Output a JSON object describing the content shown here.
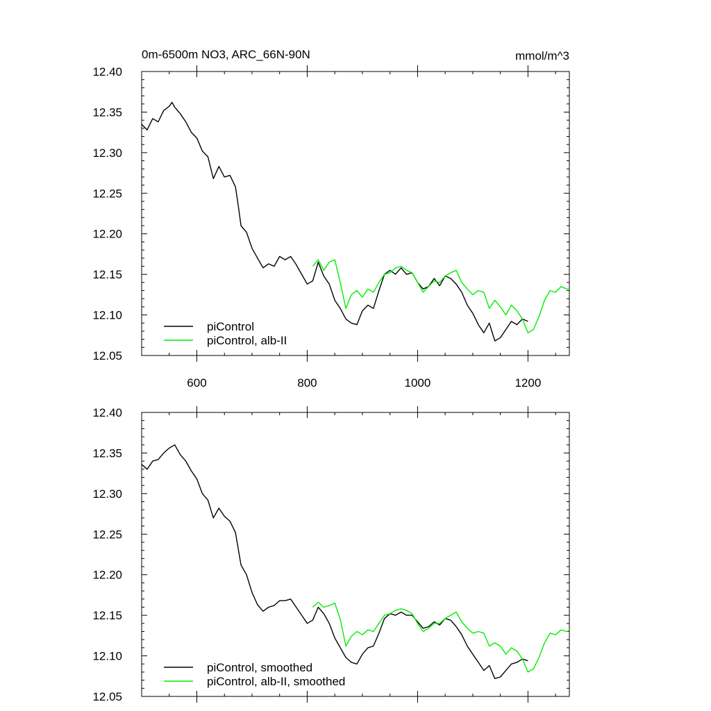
{
  "chart_data": [
    {
      "type": "line",
      "title": "0m-6500m NO3, ARC_66N-90N",
      "units": "mmol/m^3",
      "xlim": [
        500,
        1275
      ],
      "ylim": [
        12.05,
        12.4
      ],
      "xticks": [
        600,
        800,
        1000,
        1200
      ],
      "xtick_labels": [
        "600",
        "800",
        "1000",
        "1200"
      ],
      "yticks": [
        12.05,
        12.1,
        12.15,
        12.2,
        12.25,
        12.3,
        12.35,
        12.4
      ],
      "ytick_labels": [
        "12.05",
        "12.10",
        "12.15",
        "12.20",
        "12.25",
        "12.30",
        "12.35",
        "12.40"
      ],
      "legend_position": "bottom-left",
      "series": [
        {
          "name": "piControl",
          "color": "#000000",
          "x": [
            500,
            510,
            520,
            530,
            540,
            550,
            555,
            560,
            570,
            580,
            590,
            600,
            610,
            620,
            630,
            640,
            650,
            660,
            670,
            675,
            680,
            690,
            700,
            710,
            720,
            730,
            740,
            750,
            760,
            770,
            780,
            790,
            800,
            810,
            820,
            830,
            840,
            850,
            860,
            870,
            880,
            890,
            900,
            910,
            920,
            930,
            940,
            950,
            960,
            970,
            980,
            990,
            1000,
            1010,
            1020,
            1030,
            1040,
            1050,
            1060,
            1070,
            1080,
            1090,
            1100,
            1110,
            1120,
            1130,
            1140,
            1150,
            1160,
            1170,
            1180,
            1190,
            1200
          ],
          "y": [
            12.335,
            12.328,
            12.342,
            12.338,
            12.352,
            12.357,
            12.362,
            12.356,
            12.348,
            12.338,
            12.325,
            12.318,
            12.302,
            12.295,
            12.268,
            12.283,
            12.27,
            12.272,
            12.258,
            12.235,
            12.21,
            12.202,
            12.182,
            12.17,
            12.158,
            12.163,
            12.16,
            12.172,
            12.168,
            12.172,
            12.162,
            12.15,
            12.138,
            12.142,
            12.165,
            12.148,
            12.138,
            12.118,
            12.108,
            12.095,
            12.09,
            12.088,
            12.105,
            12.112,
            12.108,
            12.13,
            12.15,
            12.155,
            12.15,
            12.158,
            12.15,
            12.152,
            12.14,
            12.132,
            12.135,
            12.145,
            12.136,
            12.148,
            12.145,
            12.138,
            12.128,
            12.112,
            12.102,
            12.088,
            12.078,
            12.09,
            12.068,
            12.072,
            12.082,
            12.092,
            12.088,
            12.095,
            12.092
          ]
        },
        {
          "name": "piControl, alb-II",
          "color": "#00ee00",
          "x": [
            810,
            820,
            830,
            840,
            850,
            860,
            870,
            880,
            890,
            900,
            910,
            920,
            930,
            940,
            950,
            960,
            970,
            980,
            990,
            1000,
            1010,
            1020,
            1030,
            1040,
            1050,
            1060,
            1070,
            1080,
            1090,
            1100,
            1110,
            1120,
            1130,
            1140,
            1150,
            1160,
            1170,
            1180,
            1190,
            1200,
            1210,
            1220,
            1230,
            1240,
            1250,
            1260,
            1270,
            1275
          ],
          "y": [
            12.16,
            12.168,
            12.155,
            12.165,
            12.168,
            12.14,
            12.108,
            12.125,
            12.13,
            12.122,
            12.132,
            12.128,
            12.14,
            12.15,
            12.152,
            12.158,
            12.16,
            12.155,
            12.152,
            12.14,
            12.128,
            12.135,
            12.142,
            12.14,
            12.148,
            12.152,
            12.155,
            12.14,
            12.132,
            12.125,
            12.13,
            12.128,
            12.108,
            12.118,
            12.11,
            12.1,
            12.112,
            12.105,
            12.095,
            12.078,
            12.082,
            12.098,
            12.118,
            12.13,
            12.128,
            12.135,
            12.132,
            12.132
          ]
        }
      ]
    },
    {
      "type": "line",
      "xlim": [
        500,
        1275
      ],
      "ylim": [
        12.05,
        12.4
      ],
      "xticks": [
        600,
        800,
        1000,
        1200
      ],
      "yticks": [
        12.05,
        12.1,
        12.15,
        12.2,
        12.25,
        12.3,
        12.35,
        12.4
      ],
      "ytick_labels": [
        "12.05",
        "12.10",
        "12.15",
        "12.20",
        "12.25",
        "12.30",
        "12.35",
        "12.40"
      ],
      "legend_position": "bottom-left",
      "series": [
        {
          "name": "piControl, smoothed",
          "color": "#000000",
          "x": [
            500,
            510,
            520,
            530,
            540,
            550,
            560,
            570,
            580,
            590,
            600,
            610,
            620,
            630,
            640,
            650,
            660,
            670,
            680,
            690,
            700,
            710,
            720,
            730,
            740,
            750,
            760,
            770,
            780,
            790,
            800,
            810,
            820,
            830,
            840,
            850,
            860,
            870,
            880,
            890,
            900,
            910,
            920,
            930,
            940,
            950,
            960,
            970,
            980,
            990,
            1000,
            1010,
            1020,
            1030,
            1040,
            1050,
            1060,
            1070,
            1080,
            1090,
            1100,
            1110,
            1120,
            1130,
            1140,
            1150,
            1160,
            1170,
            1180,
            1190,
            1200
          ],
          "y": [
            12.336,
            12.33,
            12.34,
            12.342,
            12.35,
            12.356,
            12.36,
            12.348,
            12.34,
            12.328,
            12.318,
            12.3,
            12.292,
            12.27,
            12.282,
            12.272,
            12.266,
            12.252,
            12.212,
            12.2,
            12.178,
            12.163,
            12.155,
            12.16,
            12.162,
            12.168,
            12.168,
            12.17,
            12.16,
            12.15,
            12.14,
            12.144,
            12.16,
            12.152,
            12.14,
            12.122,
            12.11,
            12.098,
            12.092,
            12.09,
            12.102,
            12.11,
            12.112,
            12.128,
            12.146,
            12.152,
            12.15,
            12.154,
            12.15,
            12.15,
            12.142,
            12.134,
            12.136,
            12.142,
            12.138,
            12.146,
            12.144,
            12.136,
            12.126,
            12.112,
            12.102,
            12.092,
            12.082,
            12.088,
            12.072,
            12.074,
            12.082,
            12.09,
            12.092,
            12.096,
            12.094
          ]
        },
        {
          "name": "piControl, alb-II, smoothed",
          "color": "#00ee00",
          "x": [
            810,
            820,
            830,
            840,
            850,
            860,
            870,
            880,
            890,
            900,
            910,
            920,
            930,
            940,
            950,
            960,
            970,
            980,
            990,
            1000,
            1010,
            1020,
            1030,
            1040,
            1050,
            1060,
            1070,
            1080,
            1090,
            1100,
            1110,
            1120,
            1130,
            1140,
            1150,
            1160,
            1170,
            1180,
            1190,
            1200,
            1210,
            1220,
            1230,
            1240,
            1250,
            1260,
            1270,
            1275
          ],
          "y": [
            12.16,
            12.166,
            12.16,
            12.162,
            12.165,
            12.145,
            12.112,
            12.124,
            12.13,
            12.126,
            12.132,
            12.13,
            12.14,
            12.15,
            12.152,
            12.156,
            12.158,
            12.156,
            12.152,
            12.14,
            12.13,
            12.134,
            12.14,
            12.14,
            12.146,
            12.15,
            12.154,
            12.142,
            12.134,
            12.128,
            12.13,
            12.128,
            12.112,
            12.116,
            12.112,
            12.102,
            12.11,
            12.106,
            12.096,
            12.08,
            12.084,
            12.098,
            12.116,
            12.128,
            12.126,
            12.132,
            12.13,
            12.131
          ]
        }
      ]
    }
  ]
}
